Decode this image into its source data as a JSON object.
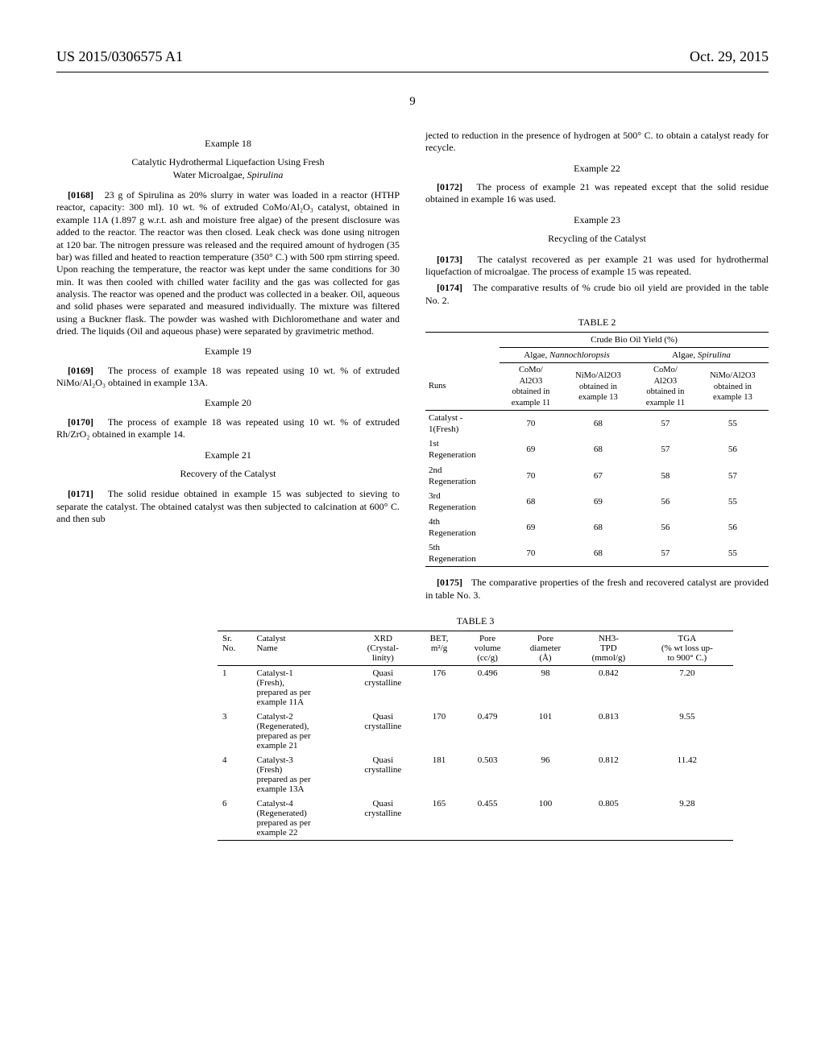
{
  "header": {
    "pubnum": "US 2015/0306575 A1",
    "date": "Oct. 29, 2015",
    "pagenum": "9"
  },
  "left": {
    "ex18": {
      "title": "Example 18",
      "subtitle_a": "Catalytic Hydrothermal Liquefaction Using Fresh",
      "subtitle_b": "Water Microalgae, ",
      "subtitle_c": "Spirulina",
      "para_num": "[0168]",
      "para": "23 g of Spirulina as 20% slurry in water was loaded in a reactor (HTHP reactor, capacity: 300 ml). 10 wt. % of extruded CoMo/Al₂O₃ catalyst, obtained in example 11A (1.897 g w.r.t. ash and moisture free algae) of the present disclosure was added to the reactor. The reactor was then closed. Leak check was done using nitrogen at 120 bar. The nitrogen pressure was released and the required amount of hydrogen (35 bar) was filled and heated to reaction temperature (350° C.) with 500 rpm stirring speed. Upon reaching the temperature, the reactor was kept under the same conditions for 30 min. It was then cooled with chilled water facility and the gas was collected for gas analysis. The reactor was opened and the product was collected in a beaker. Oil, aqueous and solid phases were separated and measured individually. The mixture was filtered using a Buckner flask. The powder was washed with Dichloromethane and water and dried. The liquids (Oil and aqueous phase) were separated by gravimetric method."
    },
    "ex19": {
      "title": "Example 19",
      "para_num": "[0169]",
      "para": "The process of example 18 was repeated using 10 wt. % of extruded NiMo/Al₂O₃ obtained in example 13A."
    },
    "ex20": {
      "title": "Example 20",
      "para_num": "[0170]",
      "para": "The process of example 18 was repeated using 10 wt. % of extruded Rh/ZrO₂ obtained in example 14."
    },
    "ex21": {
      "title": "Example 21",
      "subtitle": "Recovery of the Catalyst",
      "para_num": "[0171]",
      "para": "The solid residue obtained in example 15 was subjected to sieving to separate the catalyst. The obtained catalyst was then subjected to calcination at 600° C. and then sub"
    }
  },
  "right": {
    "cont": "jected to reduction in the presence of hydrogen at 500° C. to obtain a catalyst ready for recycle.",
    "ex22": {
      "title": "Example 22",
      "para_num": "[0172]",
      "para": "The process of example 21 was repeated except that the solid residue obtained in example 16 was used."
    },
    "ex23": {
      "title": "Example 23",
      "subtitle": "Recycling of the Catalyst",
      "p1_num": "[0173]",
      "p1": "The catalyst recovered as per example 21 was used for hydrothermal liquefaction of microalgae. The process of example 15 was repeated.",
      "p2_num": "[0174]",
      "p2": "The comparative results of % crude bio oil yield are provided in the table No. 2."
    },
    "p3_num": "[0175]",
    "p3": "The comparative properties of the fresh and recovered catalyst are provided in table No. 3."
  },
  "table2": {
    "caption": "TABLE 2",
    "span_title": "Crude Bio Oil Yield (%)",
    "groups": [
      "Algae, Nannochloropsis",
      "Algae, Spirulina"
    ],
    "subcols": [
      "CoMo/\nAl2O3\nobtained in\nexample 11",
      "NiMo/Al2O3\nobtained in\nexample 13",
      "CoMo/\nAl2O3\nobtained in\nexample 11",
      "NiMo/Al2O3\nobtained in\nexample 13"
    ],
    "rowhead": "Runs",
    "rows": [
      {
        "label": "Catalyst -\n1(Fresh)",
        "v": [
          "70",
          "68",
          "57",
          "55"
        ]
      },
      {
        "label": "1st\nRegeneration",
        "v": [
          "69",
          "68",
          "57",
          "56"
        ]
      },
      {
        "label": "2nd\nRegeneration",
        "v": [
          "70",
          "67",
          "58",
          "57"
        ]
      },
      {
        "label": "3rd\nRegeneration",
        "v": [
          "68",
          "69",
          "56",
          "55"
        ]
      },
      {
        "label": "4th\nRegeneration",
        "v": [
          "69",
          "68",
          "56",
          "56"
        ]
      },
      {
        "label": "5th\nRegeneration",
        "v": [
          "70",
          "68",
          "57",
          "55"
        ]
      }
    ]
  },
  "table3": {
    "caption": "TABLE 3",
    "headers": [
      "Sr.\nNo.",
      "Catalyst\nName",
      "XRD\n(Crystal-\nlinity)",
      "BET,\nm²/g",
      "Pore\nvolume\n(cc/g)",
      "Pore\ndiameter\n(Å)",
      "NH3-\nTPD\n(mmol/g)",
      "TGA\n(% wt loss up-\nto 900° C.)"
    ],
    "rows": [
      {
        "c": [
          "1",
          "Catalyst-1\n(Fresh),\nprepared as per\nexample 11A",
          "Quasi\ncrystalline",
          "176",
          "0.496",
          "98",
          "0.842",
          "7.20"
        ]
      },
      {
        "c": [
          "3",
          "Catalyst-2\n(Regenerated),\nprepared as per\nexample 21",
          "Quasi\ncrystalline",
          "170",
          "0.479",
          "101",
          "0.813",
          "9.55"
        ]
      },
      {
        "c": [
          "4",
          "Catalyst-3\n(Fresh)\nprepared as per\nexample 13A",
          "Quasi\ncrystalline",
          "181",
          "0.503",
          "96",
          "0.812",
          "11.42"
        ]
      },
      {
        "c": [
          "6",
          "Catalyst-4\n(Regenerated)\nprepared as per\nexample 22",
          "Quasi\ncrystalline",
          "165",
          "0.455",
          "100",
          "0.805",
          "9.28"
        ]
      }
    ]
  }
}
